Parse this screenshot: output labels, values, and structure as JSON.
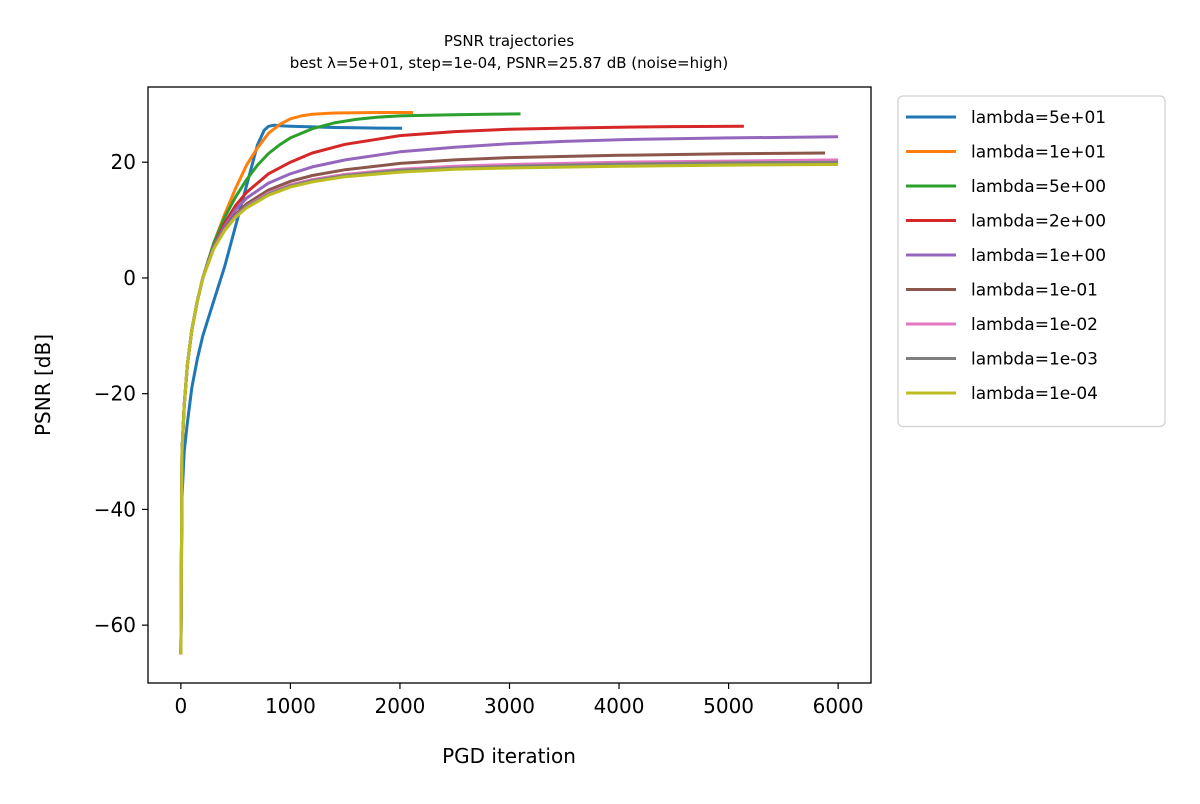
{
  "chart_data": {
    "type": "line",
    "title": "PSNR trajectories",
    "subtitle": "best λ=5e+01, step=1e-04, PSNR=25.87 dB (noise=high)",
    "xlabel": "PGD iteration",
    "ylabel": "PSNR [dB]",
    "xlim": [
      -300,
      6300
    ],
    "ylim": [
      -70,
      33
    ],
    "xticks": [
      0,
      1000,
      2000,
      3000,
      4000,
      5000,
      6000
    ],
    "yticks": [
      -60,
      -40,
      -20,
      0,
      20
    ],
    "xtick_labels": [
      "0",
      "1000",
      "2000",
      "3000",
      "4000",
      "5000",
      "6000"
    ],
    "ytick_labels": [
      "−60",
      "−40",
      "−20",
      "0",
      "20"
    ],
    "grid": false,
    "legend_position": "outside-right-top",
    "series": [
      {
        "name": "lambda=5e+01",
        "color": "#1f77b4",
        "x": [
          0,
          10,
          30,
          60,
          100,
          150,
          200,
          300,
          400,
          500,
          600,
          700,
          760,
          800,
          850,
          900,
          1000,
          1200,
          1400,
          1600,
          1800,
          2020
        ],
        "y": [
          -65,
          -38,
          -30,
          -25,
          -19,
          -14,
          -10,
          -4,
          2,
          9,
          16,
          23,
          25.5,
          26.2,
          26.4,
          26.3,
          26.2,
          26.1,
          26.0,
          25.95,
          25.9,
          25.87
        ]
      },
      {
        "name": "lambda=1e+01",
        "color": "#ff7f0e",
        "x": [
          0,
          10,
          30,
          60,
          100,
          150,
          200,
          300,
          400,
          500,
          600,
          700,
          800,
          900,
          1000,
          1100,
          1200,
          1400,
          1600,
          1800,
          2000,
          2120
        ],
        "y": [
          -65,
          -30,
          -22,
          -15,
          -9,
          -4,
          0,
          6,
          11,
          15.5,
          19.5,
          22.5,
          25,
          26.5,
          27.5,
          28.0,
          28.3,
          28.5,
          28.55,
          28.6,
          28.6,
          28.6
        ]
      },
      {
        "name": "lambda=5e+00",
        "color": "#2ca02c",
        "x": [
          0,
          10,
          30,
          60,
          100,
          150,
          200,
          300,
          400,
          500,
          600,
          700,
          800,
          900,
          1000,
          1200,
          1400,
          1600,
          1800,
          2000,
          2200,
          2500,
          2800,
          3100
        ],
        "y": [
          -65,
          -30,
          -22,
          -15,
          -9,
          -4,
          0,
          6,
          10.5,
          14,
          17,
          19.5,
          21.5,
          23,
          24.2,
          25.8,
          26.8,
          27.4,
          27.8,
          28.0,
          28.1,
          28.2,
          28.3,
          28.35
        ]
      },
      {
        "name": "lambda=2e+00",
        "color": "#d62728",
        "x": [
          0,
          10,
          30,
          60,
          100,
          150,
          200,
          300,
          400,
          500,
          600,
          800,
          1000,
          1200,
          1500,
          2000,
          2500,
          3000,
          3500,
          4000,
          4500,
          5140
        ],
        "y": [
          -65,
          -30,
          -22,
          -15,
          -9,
          -4,
          0,
          5.5,
          9.5,
          12.5,
          14.8,
          18,
          20,
          21.6,
          23.1,
          24.6,
          25.3,
          25.7,
          25.9,
          26.05,
          26.15,
          26.2
        ]
      },
      {
        "name": "lambda=1e+00",
        "color": "#9467bd",
        "x": [
          0,
          10,
          30,
          60,
          100,
          150,
          200,
          300,
          400,
          500,
          600,
          800,
          1000,
          1200,
          1500,
          2000,
          2500,
          3000,
          3500,
          4000,
          5000,
          6000
        ],
        "y": [
          -65,
          -30,
          -22,
          -15,
          -9,
          -4,
          0,
          5.5,
          9,
          11.8,
          13.8,
          16.4,
          18,
          19.2,
          20.4,
          21.8,
          22.6,
          23.2,
          23.6,
          23.9,
          24.2,
          24.4
        ]
      },
      {
        "name": "lambda=1e-01",
        "color": "#8c564b",
        "x": [
          0,
          10,
          30,
          60,
          100,
          150,
          200,
          300,
          400,
          500,
          600,
          800,
          1000,
          1200,
          1500,
          2000,
          2500,
          3000,
          4000,
          5000,
          5880
        ],
        "y": [
          -65,
          -30,
          -22,
          -15,
          -9,
          -4,
          0,
          5.3,
          8.6,
          11,
          12.8,
          15.2,
          16.7,
          17.7,
          18.7,
          19.8,
          20.4,
          20.8,
          21.2,
          21.45,
          21.6
        ]
      },
      {
        "name": "lambda=1e-02",
        "color": "#e377c2",
        "x": [
          0,
          10,
          30,
          60,
          100,
          150,
          200,
          300,
          400,
          500,
          600,
          800,
          1000,
          1200,
          1500,
          2000,
          2500,
          3000,
          4000,
          5000,
          6000
        ],
        "y": [
          -65,
          -30,
          -22,
          -15,
          -9,
          -4,
          0,
          5.2,
          8.4,
          10.7,
          12.4,
          14.7,
          16.1,
          17.0,
          17.9,
          18.8,
          19.3,
          19.6,
          20.0,
          20.2,
          20.4
        ]
      },
      {
        "name": "lambda=1e-03",
        "color": "#7f7f7f",
        "x": [
          0,
          10,
          30,
          60,
          100,
          150,
          200,
          300,
          400,
          500,
          600,
          800,
          1000,
          1200,
          1500,
          2000,
          2500,
          3000,
          4000,
          5000,
          6000
        ],
        "y": [
          -65,
          -30,
          -22,
          -15,
          -9,
          -4,
          0,
          5.1,
          8.3,
          10.6,
          12.3,
          14.5,
          15.9,
          16.8,
          17.7,
          18.6,
          19.0,
          19.3,
          19.7,
          19.9,
          20.0
        ]
      },
      {
        "name": "lambda=1e-04",
        "color": "#bcbd22",
        "x": [
          0,
          10,
          30,
          60,
          100,
          150,
          200,
          300,
          400,
          500,
          600,
          800,
          1000,
          1200,
          1500,
          2000,
          2500,
          3000,
          4000,
          5000,
          6000
        ],
        "y": [
          -65,
          -30,
          -22,
          -15,
          -9,
          -4,
          0,
          5.0,
          8.2,
          10.5,
          12.1,
          14.3,
          15.7,
          16.6,
          17.5,
          18.3,
          18.8,
          19.0,
          19.3,
          19.5,
          19.6
        ]
      }
    ]
  }
}
